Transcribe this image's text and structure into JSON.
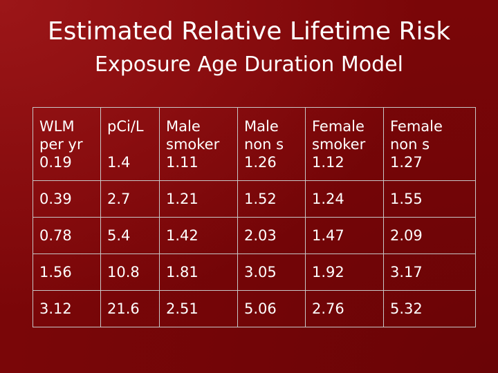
{
  "slide": {
    "title": "Estimated Relative Lifetime Risk",
    "subtitle": "Exposure Age Duration Model"
  },
  "table": {
    "headers": [
      [
        "WLM",
        "per yr"
      ],
      [
        "pCi/L",
        ""
      ],
      [
        "Male",
        "smoker"
      ],
      [
        "Male",
        "non s"
      ],
      [
        "Female",
        "smoker"
      ],
      [
        "Female",
        "non s"
      ]
    ],
    "rows": [
      [
        "0.19",
        "1.4",
        "1.11",
        "1.26",
        "1.12",
        "1.27"
      ],
      [
        "0.39",
        "2.7",
        "1.21",
        "1.52",
        "1.24",
        "1.55"
      ],
      [
        "0.78",
        "5.4",
        "1.42",
        "2.03",
        "1.47",
        "2.09"
      ],
      [
        "1.56",
        "10.8",
        "1.81",
        "3.05",
        "1.92",
        "3.17"
      ],
      [
        "3.12",
        "21.6",
        "2.51",
        "5.06",
        "2.76",
        "5.32"
      ]
    ]
  },
  "colors": {
    "background": "#7a0608",
    "text": "#ffffff",
    "grid": "#c8c8c8"
  }
}
